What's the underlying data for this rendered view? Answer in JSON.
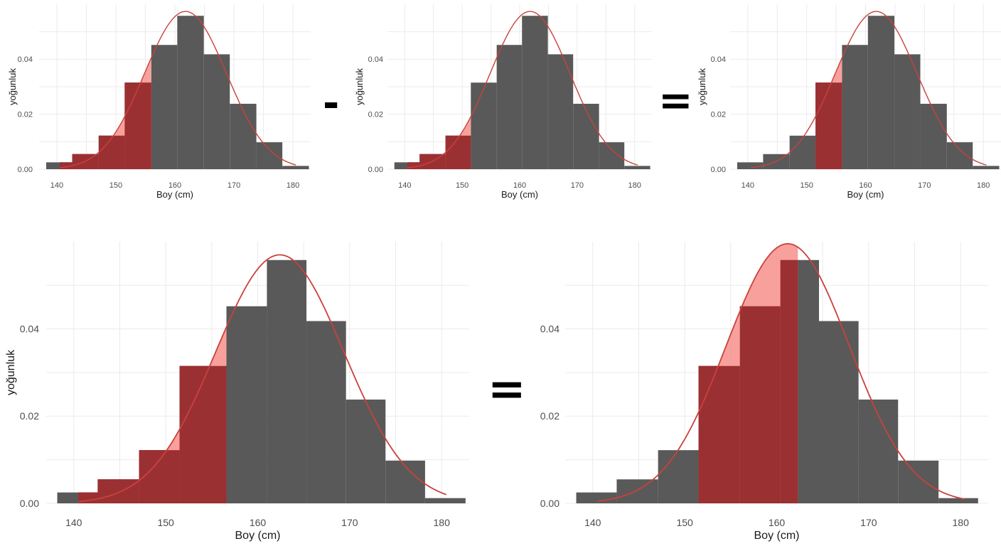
{
  "colors": {
    "bar": "#595959",
    "highlight_bar": "#9b3033",
    "curve": "#c8423c",
    "curve_fill": "#f7908b",
    "grid": "#ebebeb"
  },
  "operators": {
    "minus": "-",
    "equals_top": "=",
    "equals_bottom": "="
  },
  "chart_data": [
    {
      "id": "top-left",
      "type": "bar",
      "xlabel": "Boy (cm)",
      "ylabel": "yoğunluk",
      "xlim": [
        137,
        183
      ],
      "ylim": [
        0,
        0.06
      ],
      "xticks": [
        140,
        150,
        160,
        170,
        180
      ],
      "yticks": [
        0,
        0.02,
        0.04
      ],
      "ytick_labels": [
        "0.00",
        "0.02",
        "0.04"
      ],
      "bins": [
        {
          "x0": 138.2,
          "x1": 142.6,
          "y": 0.0025
        },
        {
          "x0": 142.6,
          "x1": 147.1,
          "y": 0.0055
        },
        {
          "x0": 147.1,
          "x1": 151.5,
          "y": 0.0122
        },
        {
          "x0": 151.5,
          "x1": 156.0,
          "y": 0.0315
        },
        {
          "x0": 156.0,
          "x1": 160.4,
          "y": 0.0452
        },
        {
          "x0": 160.4,
          "x1": 164.9,
          "y": 0.0558
        },
        {
          "x0": 164.9,
          "x1": 169.3,
          "y": 0.0418
        },
        {
          "x0": 169.3,
          "x1": 173.8,
          "y": 0.0238
        },
        {
          "x0": 173.8,
          "x1": 178.2,
          "y": 0.0098
        },
        {
          "x0": 178.2,
          "x1": 182.7,
          "y": 0.0012
        }
      ],
      "curve": {
        "mean": 161.8,
        "sd": 6.95,
        "from": 140.5,
        "to": 180.5
      },
      "shade": [
        140.5,
        156.0
      ]
    },
    {
      "id": "top-middle",
      "type": "bar",
      "xlabel": "Boy (cm)",
      "ylabel": "yoğunluk",
      "xlim": [
        137,
        183
      ],
      "ylim": [
        0,
        0.06
      ],
      "xticks": [
        140,
        150,
        160,
        170,
        180
      ],
      "yticks": [
        0,
        0.02,
        0.04
      ],
      "ytick_labels": [
        "0.00",
        "0.02",
        "0.04"
      ],
      "bins": [
        {
          "x0": 138.2,
          "x1": 142.6,
          "y": 0.0025
        },
        {
          "x0": 142.6,
          "x1": 147.1,
          "y": 0.0055
        },
        {
          "x0": 147.1,
          "x1": 151.5,
          "y": 0.0122
        },
        {
          "x0": 151.5,
          "x1": 156.0,
          "y": 0.0315
        },
        {
          "x0": 156.0,
          "x1": 160.4,
          "y": 0.0452
        },
        {
          "x0": 160.4,
          "x1": 164.9,
          "y": 0.0558
        },
        {
          "x0": 164.9,
          "x1": 169.3,
          "y": 0.0418
        },
        {
          "x0": 169.3,
          "x1": 173.8,
          "y": 0.0238
        },
        {
          "x0": 173.8,
          "x1": 178.2,
          "y": 0.0098
        },
        {
          "x0": 178.2,
          "x1": 182.7,
          "y": 0.0012
        }
      ],
      "curve": {
        "mean": 161.8,
        "sd": 6.95,
        "from": 140.5,
        "to": 180.5
      },
      "shade": [
        140.5,
        151.5
      ]
    },
    {
      "id": "top-right",
      "type": "bar",
      "xlabel": "Boy (cm)",
      "ylabel": "yoğunluk",
      "xlim": [
        137,
        183
      ],
      "ylim": [
        0,
        0.06
      ],
      "xticks": [
        140,
        150,
        160,
        170,
        180
      ],
      "yticks": [
        0,
        0.02,
        0.04
      ],
      "ytick_labels": [
        "0.00",
        "0.02",
        "0.04"
      ],
      "bins": [
        {
          "x0": 138.2,
          "x1": 142.6,
          "y": 0.0025
        },
        {
          "x0": 142.6,
          "x1": 147.1,
          "y": 0.0055
        },
        {
          "x0": 147.1,
          "x1": 151.5,
          "y": 0.0122
        },
        {
          "x0": 151.5,
          "x1": 156.0,
          "y": 0.0315
        },
        {
          "x0": 156.0,
          "x1": 160.4,
          "y": 0.0452
        },
        {
          "x0": 160.4,
          "x1": 164.9,
          "y": 0.0558
        },
        {
          "x0": 164.9,
          "x1": 169.3,
          "y": 0.0418
        },
        {
          "x0": 169.3,
          "x1": 173.8,
          "y": 0.0238
        },
        {
          "x0": 173.8,
          "x1": 178.2,
          "y": 0.0098
        },
        {
          "x0": 178.2,
          "x1": 182.7,
          "y": 0.0012
        }
      ],
      "curve": {
        "mean": 161.8,
        "sd": 6.95,
        "from": 140.5,
        "to": 180.5
      },
      "shade": [
        151.5,
        156.0
      ]
    },
    {
      "id": "bottom-left",
      "type": "bar",
      "xlabel": "Boy (cm)",
      "ylabel": "yoğunluk",
      "xlim": [
        137,
        183
      ],
      "ylim": [
        0,
        0.06
      ],
      "xticks": [
        140,
        150,
        160,
        170,
        180
      ],
      "yticks": [
        0,
        0.02,
        0.04
      ],
      "ytick_labels": [
        "0.00",
        "0.02",
        "0.04"
      ],
      "bins": [
        {
          "x0": 138.2,
          "x1": 142.6,
          "y": 0.0025
        },
        {
          "x0": 142.6,
          "x1": 147.1,
          "y": 0.0055
        },
        {
          "x0": 147.1,
          "x1": 151.5,
          "y": 0.0122
        },
        {
          "x0": 151.5,
          "x1": 156.6,
          "y": 0.0315
        },
        {
          "x0": 156.6,
          "x1": 161.0,
          "y": 0.0452
        },
        {
          "x0": 161.0,
          "x1": 165.3,
          "y": 0.0558
        },
        {
          "x0": 165.3,
          "x1": 169.6,
          "y": 0.0418
        },
        {
          "x0": 169.6,
          "x1": 173.9,
          "y": 0.0238
        },
        {
          "x0": 173.9,
          "x1": 178.2,
          "y": 0.0098
        },
        {
          "x0": 178.2,
          "x1": 182.6,
          "y": 0.0012
        }
      ],
      "curve": {
        "mean": 162.4,
        "sd": 7.0,
        "from": 140.5,
        "to": 180.5
      },
      "shade": [
        140.5,
        156.6
      ]
    },
    {
      "id": "bottom-right",
      "type": "bar",
      "xlabel": "Boy (cm)",
      "ylabel": "",
      "xlim": [
        137,
        183
      ],
      "ylim": [
        0,
        0.06
      ],
      "xticks": [
        140,
        150,
        160,
        170,
        180
      ],
      "yticks": [
        0,
        0.02,
        0.04
      ],
      "ytick_labels": [
        "0.00",
        "0.02",
        "0.04"
      ],
      "bins": [
        {
          "x0": 138.2,
          "x1": 142.6,
          "y": 0.0025
        },
        {
          "x0": 142.6,
          "x1": 147.1,
          "y": 0.0055
        },
        {
          "x0": 147.1,
          "x1": 151.5,
          "y": 0.0122
        },
        {
          "x0": 151.5,
          "x1": 156.0,
          "y": 0.0315
        },
        {
          "x0": 156.0,
          "x1": 160.4,
          "y": 0.0452
        },
        {
          "x0": 160.4,
          "x1": 164.6,
          "y": 0.0558
        },
        {
          "x0": 164.6,
          "x1": 168.9,
          "y": 0.0418
        },
        {
          "x0": 168.9,
          "x1": 173.2,
          "y": 0.0238
        },
        {
          "x0": 173.2,
          "x1": 177.6,
          "y": 0.0098
        },
        {
          "x0": 177.6,
          "x1": 181.9,
          "y": 0.0012
        }
      ],
      "curve": {
        "mean": 161.2,
        "sd": 6.7,
        "from": 140.5,
        "to": 180.5
      },
      "shade": [
        151.5,
        162.3
      ]
    }
  ]
}
